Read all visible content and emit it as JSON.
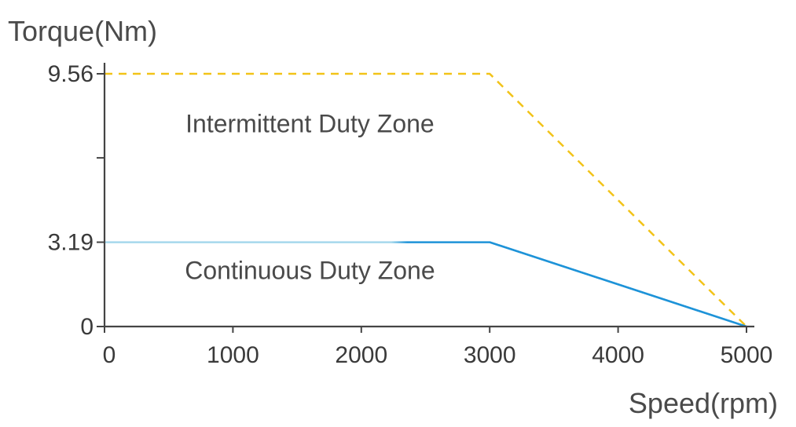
{
  "chart_data": {
    "type": "line",
    "ylabel": "Torque(Nm)",
    "xlabel": "Speed(rpm)",
    "xlim": [
      0,
      5000
    ],
    "ylim": [
      0,
      9.56
    ],
    "x_ticks": [
      0,
      1000,
      2000,
      3000,
      4000,
      5000
    ],
    "x_tick_labels": [
      "0",
      "1000",
      "2000",
      "3000",
      "4000",
      "5000"
    ],
    "y_ticks": [
      0,
      3.19,
      9.56
    ],
    "y_tick_labels": [
      "0",
      "3.19",
      "9.56"
    ],
    "y_minor_ticks": [
      6.38
    ],
    "grid": false,
    "series": [
      {
        "role": "intermittent",
        "style": "dashed",
        "color": "#f2c318",
        "x": [
          0,
          3000,
          5000
        ],
        "y": [
          9.56,
          9.56,
          0
        ]
      },
      {
        "role": "continuous",
        "style": "solid",
        "color": "#1e93d8",
        "start_color": "#a6d8ec",
        "x": [
          0,
          3000,
          5000
        ],
        "y": [
          3.19,
          3.19,
          0
        ]
      }
    ],
    "annotations": [
      {
        "text": "Intermittent Duty Zone",
        "x": 1600,
        "y": 7.35
      },
      {
        "text": "Continuous Duty Zone",
        "x": 1600,
        "y": 1.8
      }
    ]
  }
}
